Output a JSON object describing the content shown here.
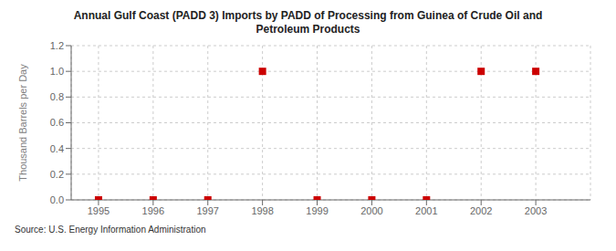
{
  "chart_data": {
    "type": "scatter",
    "title": "Annual Gulf Coast (PADD 3) Imports by PADD of Processing from Guinea of Crude Oil and\nPetroleum Products",
    "ylabel": "Thousand Barrels per Day",
    "annotation": "Source: U.S. Energy Information Administration",
    "x": [
      1995,
      1996,
      1997,
      1998,
      1999,
      2000,
      2001,
      2002,
      2003
    ],
    "values": [
      0,
      0,
      0,
      1,
      0,
      0,
      0,
      1,
      1
    ],
    "color": "#cc0000",
    "marker": "square",
    "xlim": [
      1994.5,
      2004.0
    ],
    "ylim": [
      0.0,
      1.2
    ],
    "xticks": [
      1995,
      1996,
      1997,
      1998,
      1999,
      2000,
      2001,
      2002,
      2003
    ],
    "yticks": [
      {
        "value": 0.0,
        "label": "0.0"
      },
      0.2,
      0.4,
      0.6,
      0.8,
      {
        "value": 1.0,
        "label": "1.0"
      },
      1.2
    ],
    "grid": true
  }
}
